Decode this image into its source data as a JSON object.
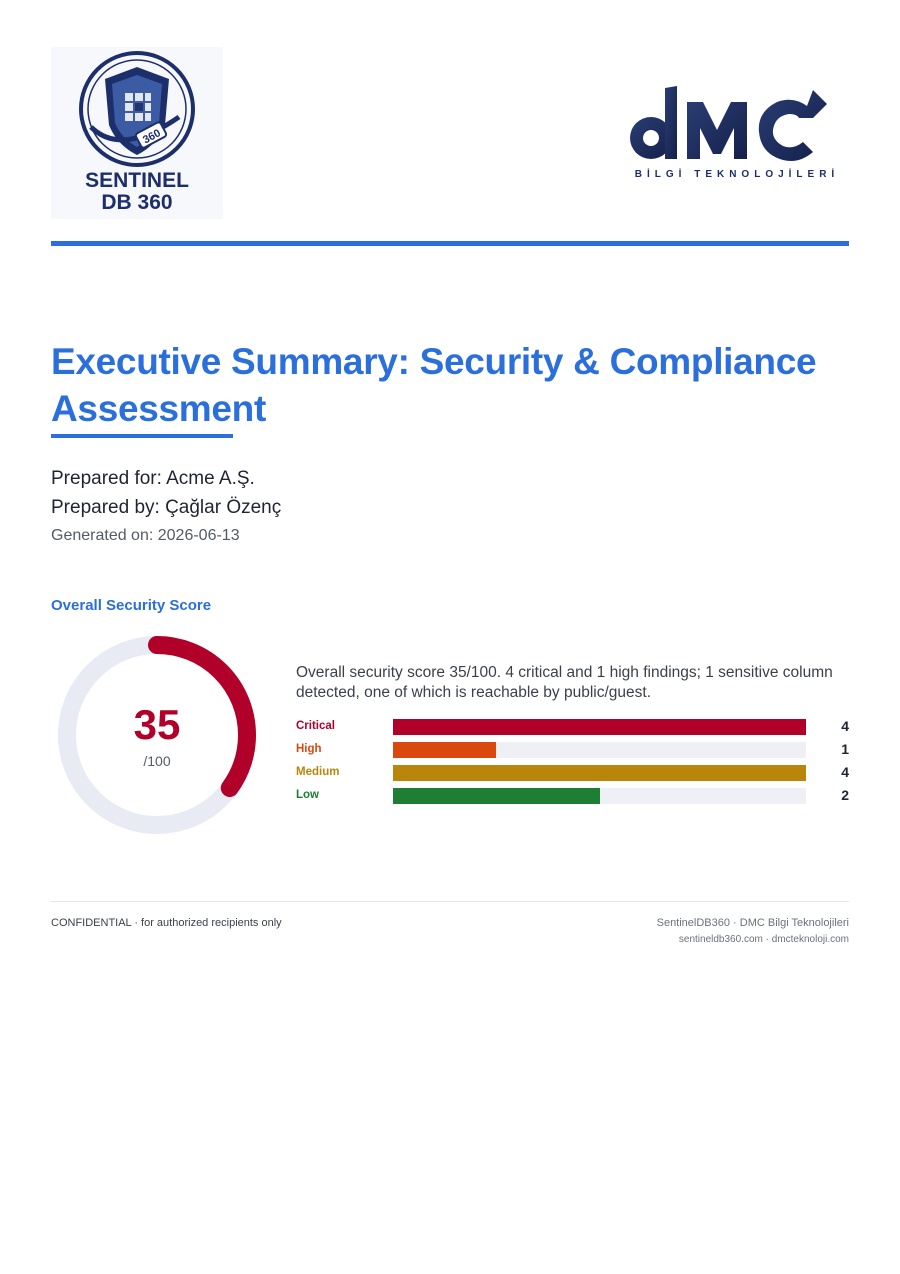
{
  "header": {
    "left_logo": {
      "icon": "sentinel-shield-logo",
      "line1": "SENTINEL",
      "line2": "DB 360",
      "badge": "360"
    },
    "right_logo": {
      "icon": "dmc-logo",
      "wordmark": "DMC",
      "tagline": "BİLGİ TEKNOLOJİLERİ"
    },
    "accent_color": "#2a6fdb"
  },
  "document": {
    "title": "Executive Summary: Security & Compliance Assessment",
    "prepared_for": "Prepared for: Acme A.Ş.",
    "prepared_by": "Prepared by: Çağlar Özenç",
    "generated_on": "Generated on: 2026-06-13"
  },
  "score_section": {
    "label": "Overall Security Score",
    "score": "35",
    "score_max": "/100",
    "score_value": 35,
    "score_color": "#b1002a",
    "summary": "Overall security score 35/100. 4 critical and 1 high findings; 1 sensitive column detected, one of which is reachable by public/guest."
  },
  "chart_data": {
    "type": "bar",
    "orientation": "horizontal",
    "categories": [
      "Critical",
      "High",
      "Medium",
      "Low"
    ],
    "values": [
      4,
      1,
      4,
      2
    ],
    "colors": [
      "#b1002a",
      "#d9480f",
      "#b8860b",
      "#1e7e34"
    ],
    "xlim": [
      0,
      4
    ]
  },
  "footer": {
    "left": "CONFIDENTIAL · for authorized recipients only",
    "right_line1": "SentinelDB360 · DMC Bilgi Teknolojileri",
    "right_line2": "sentineldb360.com · dmcteknoloji.com"
  }
}
